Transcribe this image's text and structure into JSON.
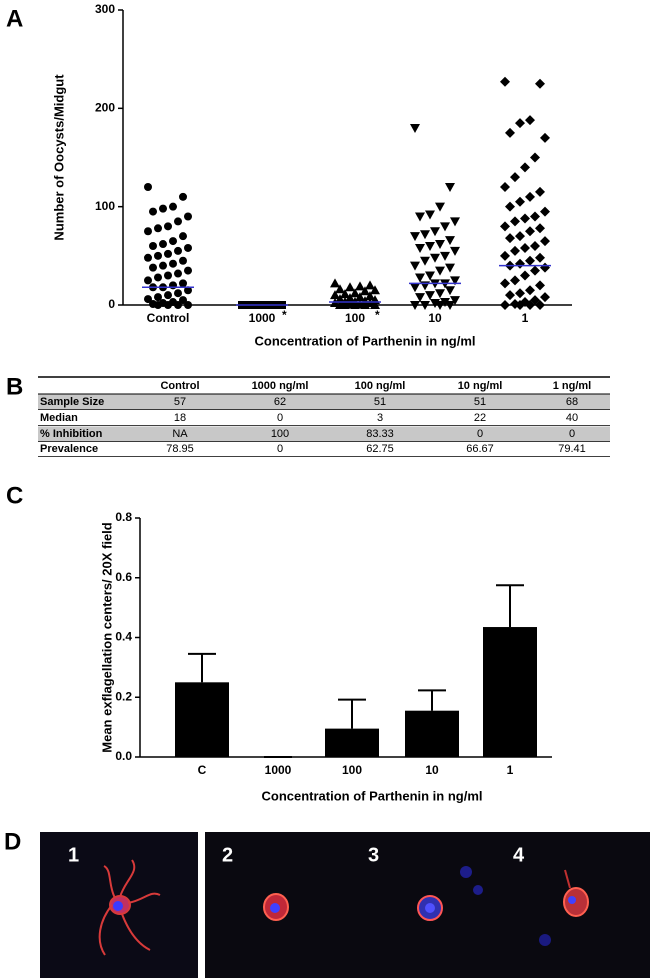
{
  "panel_labels": [
    "A",
    "B",
    "C",
    "D"
  ],
  "chart_data": [
    {
      "type": "dotplot",
      "categories": [
        "Control",
        "1000",
        "100",
        "10",
        "1"
      ],
      "significance": [
        null,
        "*",
        "*",
        null,
        null
      ],
      "markers": [
        "circle",
        "square",
        "triangle-up",
        "triangle-down",
        "diamond"
      ],
      "color": "#000000",
      "median_color": "#3333cc",
      "points": [
        [
          120,
          110,
          100,
          98,
          95,
          90,
          85,
          80,
          78,
          75,
          70,
          65,
          62,
          60,
          58,
          55,
          52,
          50,
          48,
          45,
          42,
          40,
          38,
          35,
          32,
          30,
          28,
          25,
          22,
          20,
          18,
          18,
          15,
          12,
          10,
          8,
          6,
          5,
          3,
          2,
          1,
          0,
          0,
          0,
          0
        ],
        [
          0,
          0,
          0,
          0,
          0,
          0,
          0,
          0,
          0,
          0,
          0,
          0,
          0,
          0,
          0
        ],
        [
          22,
          20,
          19,
          18,
          16,
          15,
          14,
          12,
          11,
          10,
          9,
          8,
          7,
          6,
          5,
          4,
          3,
          3,
          2,
          2,
          1,
          1,
          0,
          0,
          0,
          0,
          0
        ],
        [
          180,
          120,
          100,
          92,
          90,
          85,
          80,
          75,
          72,
          70,
          66,
          62,
          60,
          58,
          55,
          50,
          48,
          45,
          40,
          38,
          35,
          30,
          28,
          25,
          22,
          22,
          20,
          18,
          15,
          12,
          10,
          8,
          5,
          3,
          2,
          0,
          0,
          0,
          0
        ],
        [
          227,
          225,
          188,
          185,
          175,
          170,
          150,
          140,
          130,
          120,
          115,
          110,
          105,
          100,
          95,
          90,
          88,
          85,
          80,
          78,
          75,
          70,
          68,
          65,
          60,
          58,
          55,
          50,
          48,
          45,
          42,
          40,
          38,
          35,
          30,
          25,
          22,
          20,
          15,
          12,
          10,
          8,
          5,
          3,
          1,
          0,
          0,
          0,
          0
        ]
      ],
      "medians": [
        18,
        0,
        3,
        22,
        40
      ],
      "ylim": [
        0,
        300
      ],
      "yticks": [
        0,
        100,
        200,
        300
      ],
      "y_label": "Number of Oocysts/Midgut",
      "x_label": "Concentration of Parthenin in ng/ml"
    },
    {
      "type": "bar",
      "categories": [
        "C",
        "1000",
        "100",
        "10",
        "1"
      ],
      "values": [
        0.25,
        0,
        0.095,
        0.155,
        0.435
      ],
      "errors": [
        0.095,
        0,
        0.097,
        0.068,
        0.14
      ],
      "color": "#000000",
      "ylim": [
        0,
        0.8
      ],
      "yticks": [
        {
          "value": 0,
          "label": "0.0"
        },
        0.2,
        0.4,
        0.6,
        0.8
      ],
      "y_label": "Mean exflagellation centers/ 20X field",
      "x_label": "Concentration of Parthenin in ng/ml"
    }
  ],
  "table": {
    "columns": [
      "Control",
      "1000 ng/ml",
      "100 ng/ml",
      "10 ng/ml",
      "1 ng/ml"
    ],
    "rows": [
      {
        "label": "Sample Size",
        "cells": [
          "57",
          "62",
          "51",
          "51",
          "68"
        ]
      },
      {
        "label": "Median",
        "cells": [
          "18",
          "0",
          "3",
          "22",
          "40"
        ]
      },
      {
        "label": "% Inhibition",
        "cells": [
          "NA",
          "100",
          "83.33",
          "0",
          "0"
        ]
      },
      {
        "label": "Prevalence",
        "cells": [
          "78.95",
          "0",
          "62.75",
          "66.67",
          "79.41"
        ]
      }
    ]
  },
  "micrograph_labels": [
    "1",
    "2",
    "3",
    "4"
  ]
}
